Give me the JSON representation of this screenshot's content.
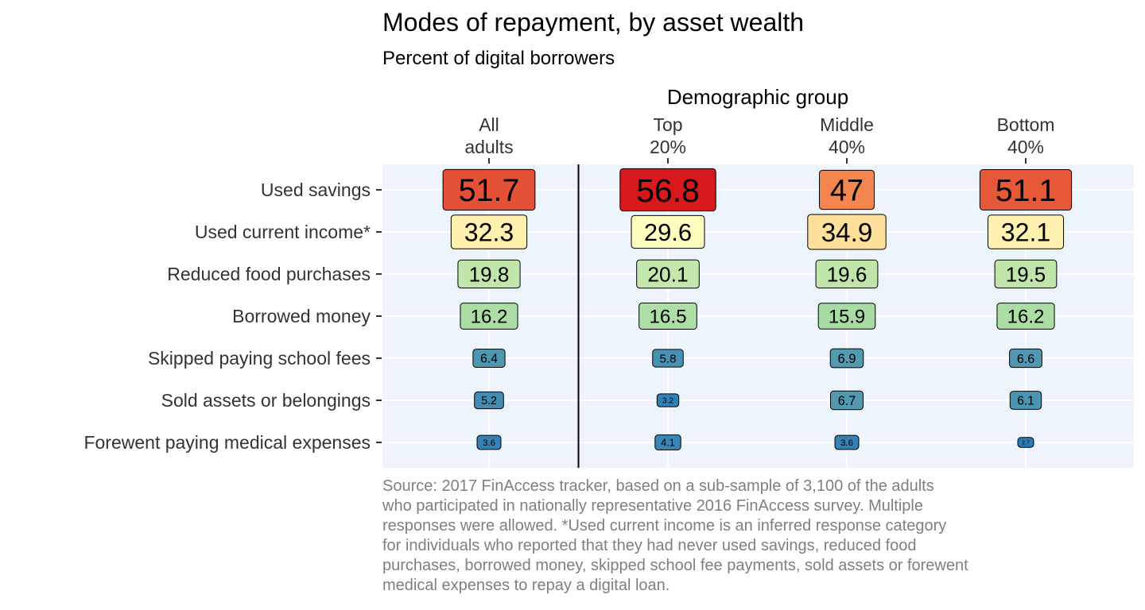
{
  "chart_data": {
    "type": "table",
    "title": "Modes of repayment, by asset wealth",
    "subtitle": "Percent of digital borrowers",
    "x_axis_title": "Demographic group",
    "columns": [
      [
        "All",
        "adults"
      ],
      [
        "Top",
        "20%"
      ],
      [
        "Middle",
        "40%"
      ],
      [
        "Bottom",
        "40%"
      ]
    ],
    "rows": [
      "Used savings",
      "Used current income*",
      "Reduced food purchases",
      "Borrowed money",
      "Skipped paying school fees",
      "Sold assets or belongings",
      "Forewent paying medical expenses"
    ],
    "values": [
      [
        "51.7",
        "56.8",
        "47",
        "51.1"
      ],
      [
        "32.3",
        "29.6",
        "34.9",
        "32.1"
      ],
      [
        "19.8",
        "20.1",
        "19.6",
        "19.5"
      ],
      [
        "16.2",
        "16.5",
        "15.9",
        "16.2"
      ],
      [
        "6.4",
        "5.8",
        "6.9",
        "6.6"
      ],
      [
        "5.2",
        "3.2",
        "6.7",
        "6.1"
      ],
      [
        "3.6",
        "4.1",
        "3.6",
        "2.7"
      ]
    ],
    "caption": [
      "Source: 2017 FinAccess tracker, based on a sub-sample of 3,100 of the adults",
      "who participated in nationally representative 2016 FinAccess survey. Multiple",
      "responses were allowed. *Used current income is an inferred response category",
      "for individuals who reported that they had never used savings, reduced food",
      "purchases, borrowed money, skipped school fee payments, sold assets or forewent",
      "medical expenses to repay a digital loan."
    ],
    "color_scale": {
      "type": "diverging-spectral",
      "stops": [
        "#2c7bb6",
        "#abdda4",
        "#ffffbf",
        "#fdae61",
        "#d7191c"
      ]
    },
    "panel_background": "#eef4fb",
    "divider_after_column": 1,
    "grid": true,
    "legend": "none"
  }
}
